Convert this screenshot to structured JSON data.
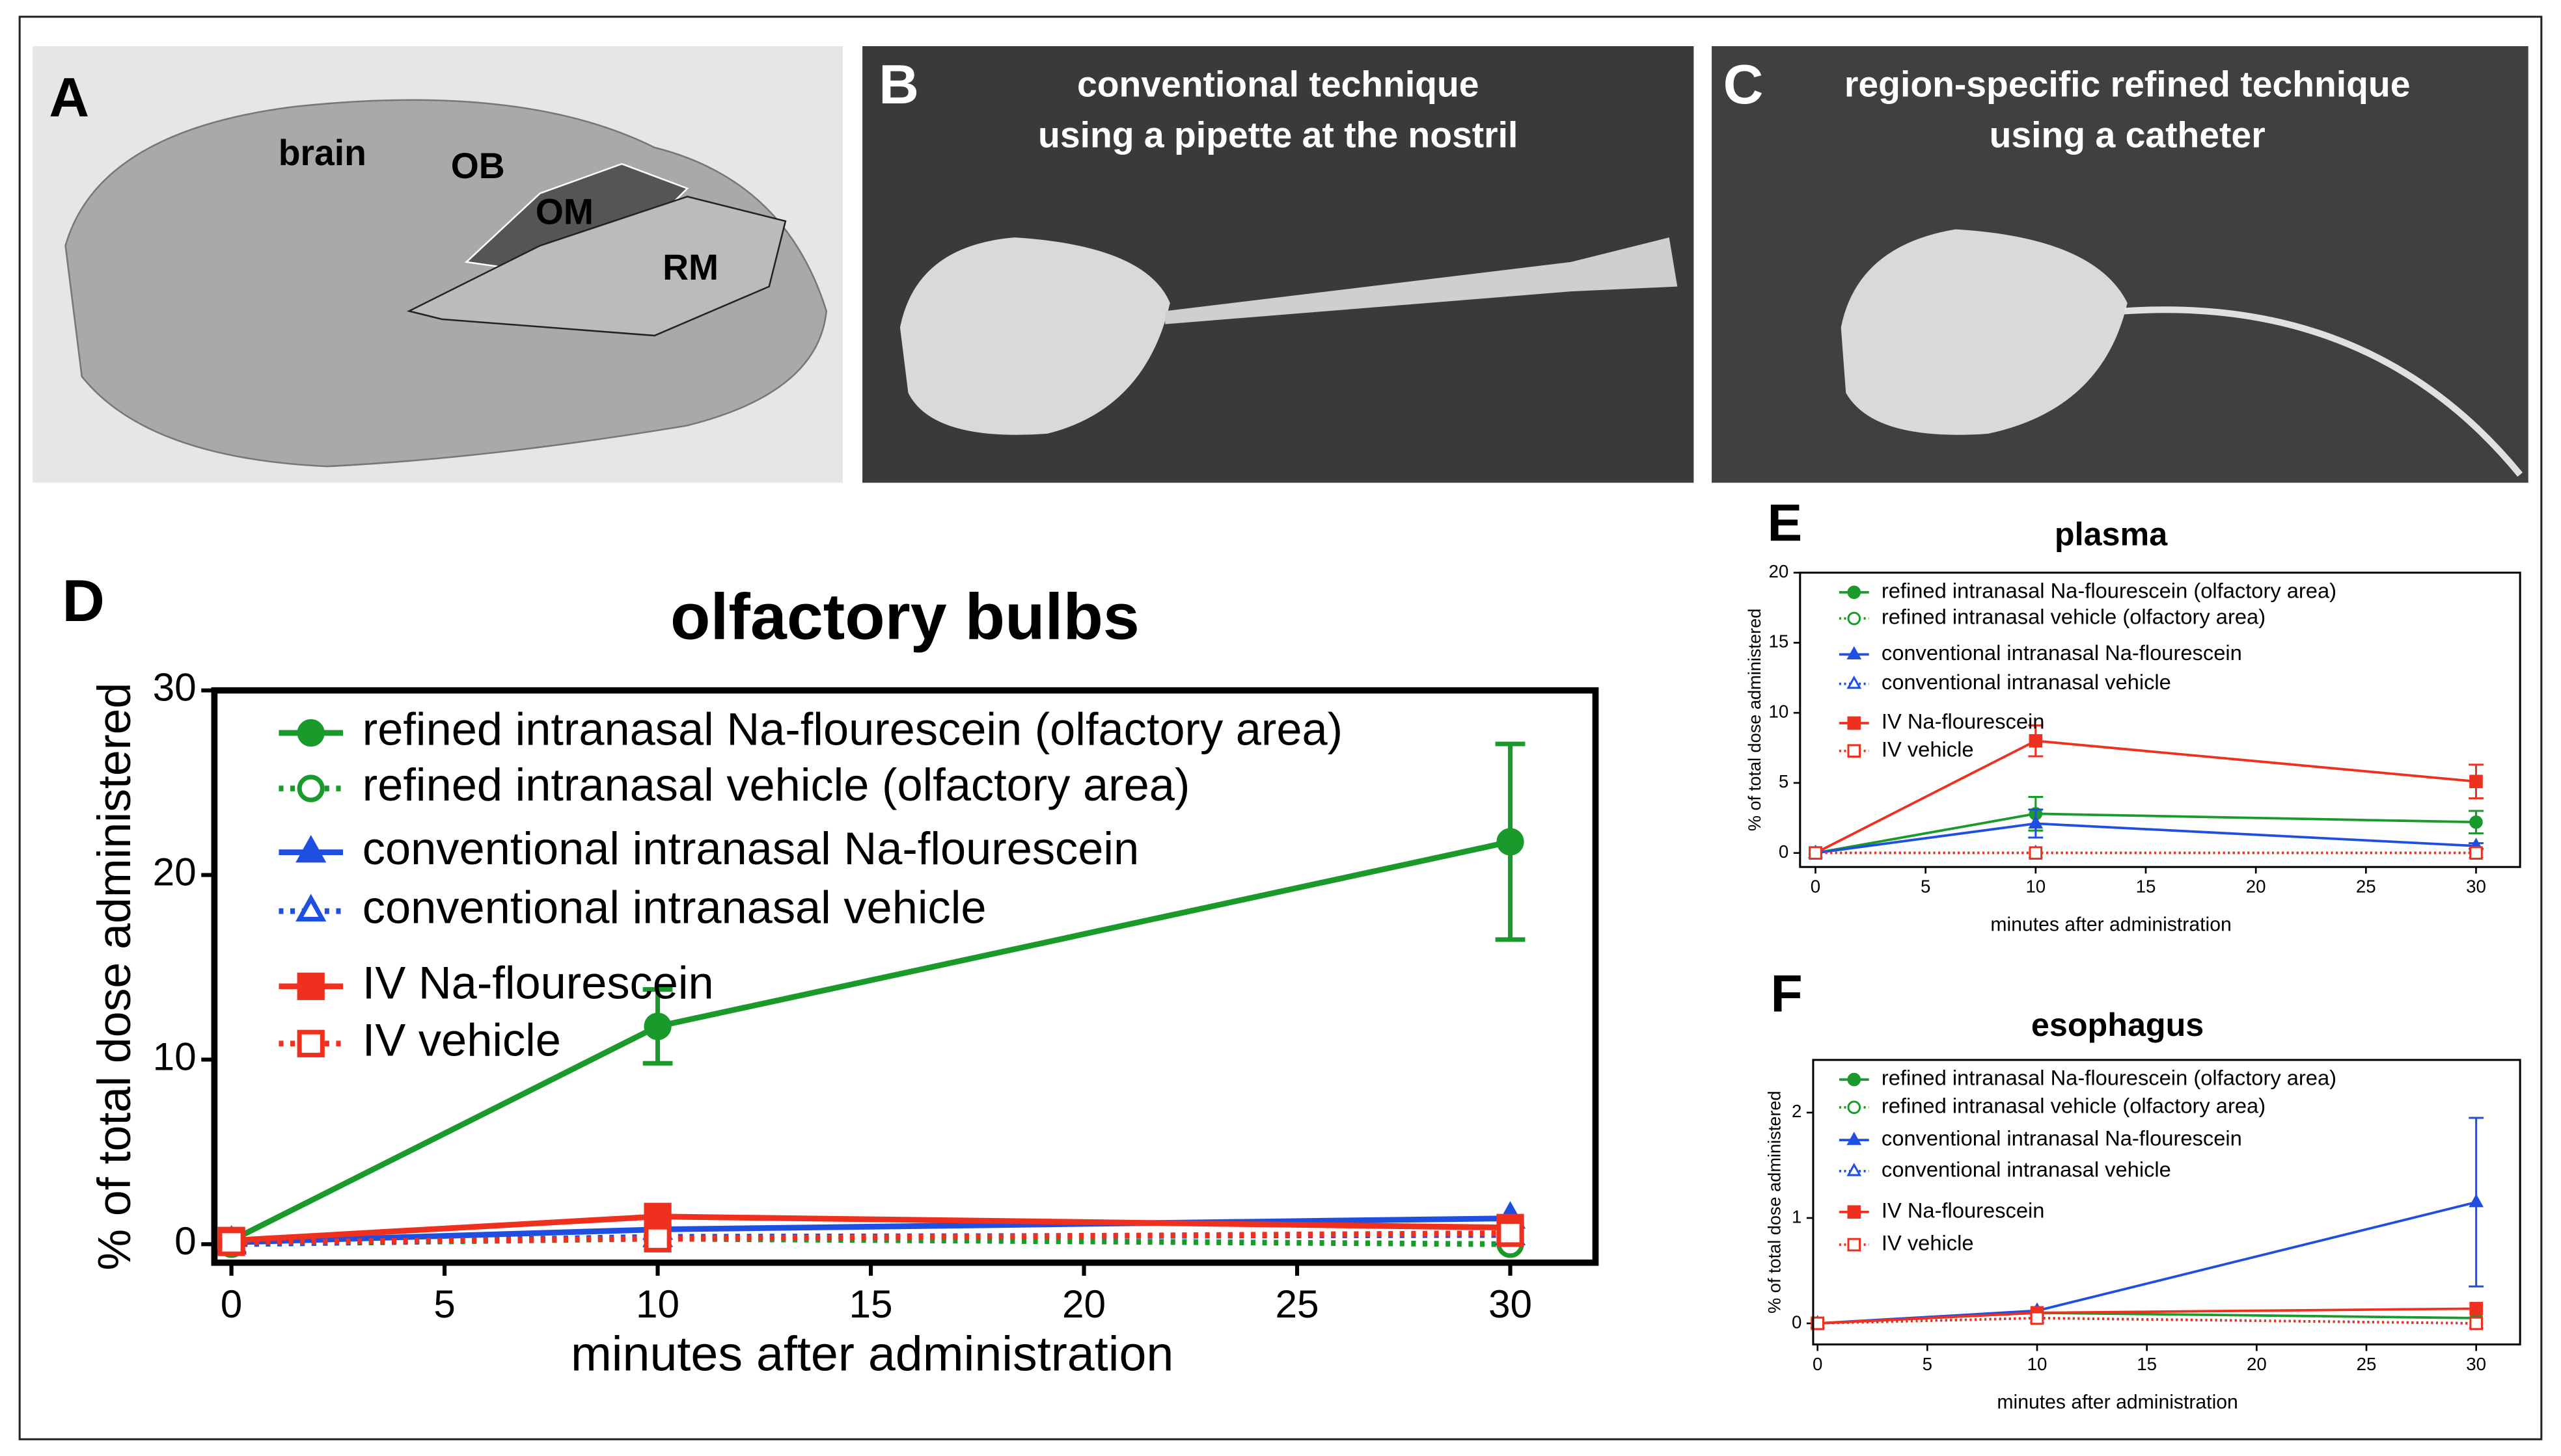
{
  "panels": {
    "A": "A",
    "B": "B",
    "C": "C",
    "D": "D",
    "E": "E",
    "F": "F"
  },
  "photo_a": {
    "labels": [
      "brain",
      "OB",
      "OM",
      "RM"
    ]
  },
  "photo_b": {
    "caption": [
      "conventional technique",
      "using a pipette at the nostril"
    ]
  },
  "photo_c": {
    "caption": [
      "region-specific refined technique",
      "using a catheter"
    ]
  },
  "chart_data": [
    {
      "type": "line",
      "title": "olfactory bulbs",
      "x_label": "minutes after administration",
      "y_label": "% of total dose administered",
      "x": [
        0,
        10,
        30
      ],
      "xlim": [
        -0.4,
        32
      ],
      "xticks": [
        0,
        5,
        10,
        15,
        20,
        25,
        30
      ],
      "ylim": [
        -1,
        30
      ],
      "yticks": [
        0,
        10,
        20,
        30
      ],
      "series": [
        {
          "name": "refined intranasal Na-flourescein (olfactory area)",
          "color": "#1a9a2a",
          "marker": "circle",
          "filled": true,
          "dash": "solid",
          "values": [
            0.2,
            11.8,
            21.8
          ],
          "errors": [
            null,
            2,
            5.3
          ]
        },
        {
          "name": "refined intranasal vehicle (olfactory area)",
          "color": "#1a9a2a",
          "marker": "circle",
          "filled": false,
          "dash": "dotted",
          "values": [
            0,
            0.3,
            0
          ],
          "errors": [
            null,
            null,
            null
          ]
        },
        {
          "name": "conventional intranasal Na-flourescein",
          "color": "#1f4fe0",
          "marker": "triangle",
          "filled": true,
          "dash": "solid",
          "values": [
            0.1,
            0.8,
            1.4
          ],
          "errors": [
            null,
            null,
            null
          ]
        },
        {
          "name": "conventional intranasal vehicle",
          "color": "#1f4fe0",
          "marker": "triangle",
          "filled": false,
          "dash": "dotted",
          "values": [
            0,
            0.4,
            0.5
          ],
          "errors": [
            null,
            null,
            null
          ]
        },
        {
          "name": "IV Na-flourescein",
          "color": "#f0301e",
          "marker": "square",
          "filled": true,
          "dash": "solid",
          "values": [
            0.2,
            1.5,
            0.9
          ],
          "errors": [
            null,
            null,
            null
          ]
        },
        {
          "name": "IV vehicle",
          "color": "#f0301e",
          "marker": "square",
          "filled": false,
          "dash": "dotted",
          "values": [
            0.1,
            0.3,
            0.6
          ],
          "errors": [
            null,
            null,
            null
          ]
        }
      ]
    },
    {
      "type": "line",
      "title": "plasma",
      "x_label": "minutes after administration",
      "y_label": "% of total dose administered",
      "x": [
        0,
        10,
        30
      ],
      "xlim": [
        -0.7,
        32
      ],
      "xticks": [
        0,
        5,
        10,
        15,
        20,
        25,
        30
      ],
      "ylim": [
        -1,
        20
      ],
      "yticks": [
        0,
        5,
        10,
        15,
        20
      ],
      "series": [
        {
          "name": "refined intranasal Na-flourescein (olfactory area)",
          "color": "#1a9a2a",
          "marker": "circle",
          "filled": true,
          "dash": "solid",
          "values": [
            0,
            2.8,
            2.2
          ],
          "errors": [
            null,
            1.2,
            0.8
          ]
        },
        {
          "name": "refined intranasal vehicle (olfactory area)",
          "color": "#1a9a2a",
          "marker": "circle",
          "filled": false,
          "dash": "dotted",
          "values": [
            0,
            0,
            0
          ],
          "errors": [
            null,
            null,
            null
          ]
        },
        {
          "name": "conventional intranasal Na-flourescein",
          "color": "#1f4fe0",
          "marker": "triangle",
          "filled": true,
          "dash": "solid",
          "values": [
            0,
            2.1,
            0.5
          ],
          "errors": [
            null,
            1,
            0.2
          ]
        },
        {
          "name": "conventional intranasal vehicle",
          "color": "#1f4fe0",
          "marker": "triangle",
          "filled": false,
          "dash": "dotted",
          "values": [
            0,
            0,
            0
          ],
          "errors": [
            null,
            null,
            null
          ]
        },
        {
          "name": "IV Na-flourescein",
          "color": "#f0301e",
          "marker": "square",
          "filled": true,
          "dash": "solid",
          "values": [
            0,
            8,
            5.1
          ],
          "errors": [
            null,
            1.1,
            1.2
          ]
        },
        {
          "name": "IV vehicle",
          "color": "#f0301e",
          "marker": "square",
          "filled": false,
          "dash": "dotted",
          "values": [
            0,
            0,
            0
          ],
          "errors": [
            null,
            null,
            null
          ]
        }
      ]
    },
    {
      "type": "line",
      "title": "esophagus",
      "x_label": "minutes after administration",
      "y_label": "% of total dose administered",
      "x": [
        0,
        10,
        30
      ],
      "xlim": [
        -0.2,
        32
      ],
      "xticks": [
        0,
        5,
        10,
        15,
        20,
        25,
        30
      ],
      "ylim": [
        -0.2,
        2.5
      ],
      "yticks": [
        0,
        1,
        2
      ],
      "series": [
        {
          "name": "refined intranasal Na-flourescein (olfactory area)",
          "color": "#1a9a2a",
          "marker": "circle",
          "filled": true,
          "dash": "solid",
          "values": [
            0,
            0.1,
            0.05
          ],
          "errors": [
            null,
            null,
            null
          ]
        },
        {
          "name": "refined intranasal vehicle (olfactory area)",
          "color": "#1a9a2a",
          "marker": "circle",
          "filled": false,
          "dash": "dotted",
          "values": [
            0,
            0.05,
            0
          ],
          "errors": [
            null,
            null,
            null
          ]
        },
        {
          "name": "conventional intranasal Na-flourescein",
          "color": "#1f4fe0",
          "marker": "triangle",
          "filled": true,
          "dash": "solid",
          "values": [
            0,
            0.12,
            1.15
          ],
          "errors": [
            null,
            null,
            0.8
          ]
        },
        {
          "name": "conventional intranasal vehicle",
          "color": "#1f4fe0",
          "marker": "triangle",
          "filled": false,
          "dash": "dotted",
          "values": [
            0,
            0.05,
            0
          ],
          "errors": [
            null,
            null,
            null
          ]
        },
        {
          "name": "IV Na-flourescein",
          "color": "#f0301e",
          "marker": "square",
          "filled": true,
          "dash": "solid",
          "values": [
            0,
            0.1,
            0.14
          ],
          "errors": [
            null,
            null,
            null
          ]
        },
        {
          "name": "IV vehicle",
          "color": "#f0301e",
          "marker": "square",
          "filled": false,
          "dash": "dotted",
          "values": [
            0,
            0.05,
            0
          ],
          "errors": [
            null,
            null,
            null
          ]
        }
      ]
    }
  ]
}
